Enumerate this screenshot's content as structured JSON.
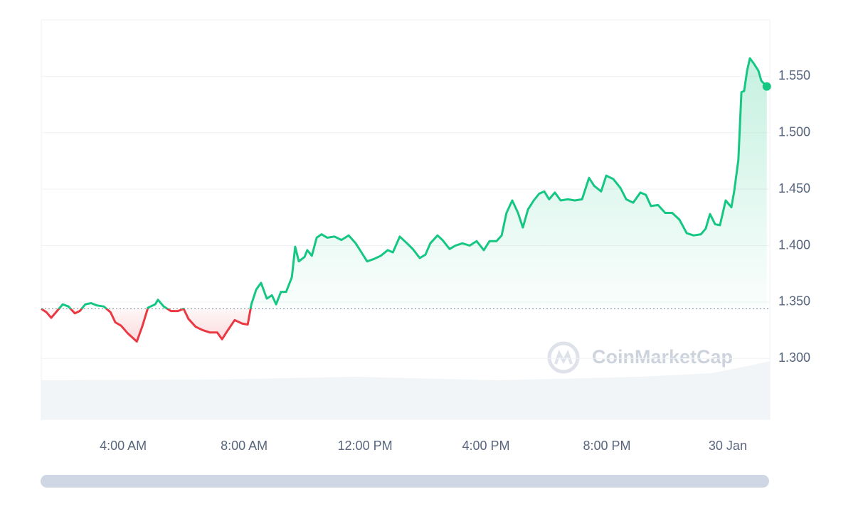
{
  "chart_data": {
    "type": "line",
    "color": "#16c784",
    "below_color": "#ea3943",
    "baseline": 1.344,
    "watermark": "CoinMarketCap",
    "grid": true,
    "xlim": [
      1.29,
      25.39
    ],
    "xticks": [
      {
        "value": 4,
        "label": "4:00 AM"
      },
      {
        "value": 8,
        "label": "8:00 AM"
      },
      {
        "value": 12,
        "label": "12:00 PM"
      },
      {
        "value": 16,
        "label": "4:00 PM"
      },
      {
        "value": 20,
        "label": "8:00 PM"
      },
      {
        "value": 24,
        "label": "30 Jan"
      }
    ],
    "ylim": [
      1.246,
      1.6
    ],
    "yticks": [
      {
        "value": 1.3,
        "label": "1.300"
      },
      {
        "value": 1.35,
        "label": "1.350"
      },
      {
        "value": 1.4,
        "label": "1.400"
      },
      {
        "value": 1.45,
        "label": "1.450"
      },
      {
        "value": 1.5,
        "label": "1.500"
      },
      {
        "value": 1.55,
        "label": "1.550"
      }
    ],
    "x": [
      1.29,
      1.46,
      1.62,
      1.81,
      2.0,
      2.19,
      2.4,
      2.56,
      2.75,
      2.94,
      3.13,
      3.36,
      3.58,
      3.74,
      3.93,
      4.16,
      4.45,
      4.64,
      4.82,
      5.06,
      5.15,
      5.34,
      5.58,
      5.81,
      6.0,
      6.16,
      6.4,
      6.64,
      6.87,
      7.11,
      7.27,
      7.46,
      7.69,
      7.93,
      8.12,
      8.24,
      8.4,
      8.56,
      8.75,
      8.92,
      9.06,
      9.22,
      9.39,
      9.58,
      9.69,
      9.81,
      10.0,
      10.09,
      10.24,
      10.4,
      10.56,
      10.75,
      10.99,
      11.22,
      11.46,
      11.69,
      11.88,
      12.07,
      12.28,
      12.52,
      12.75,
      12.92,
      13.15,
      13.39,
      13.58,
      13.81,
      14.0,
      14.16,
      14.4,
      14.56,
      14.8,
      14.99,
      15.22,
      15.46,
      15.69,
      15.93,
      16.12,
      16.35,
      16.52,
      16.68,
      16.87,
      17.06,
      17.22,
      17.39,
      17.58,
      17.76,
      17.93,
      18.09,
      18.28,
      18.47,
      18.71,
      18.94,
      19.18,
      19.41,
      19.58,
      19.81,
      19.98,
      20.21,
      20.45,
      20.64,
      20.87,
      21.11,
      21.29,
      21.46,
      21.69,
      21.93,
      22.16,
      22.4,
      22.64,
      22.87,
      23.11,
      23.27,
      23.41,
      23.58,
      23.74,
      23.93,
      24.12,
      24.21,
      24.35,
      24.45,
      24.54,
      24.64,
      24.73,
      24.87,
      25.01,
      25.11,
      25.29
    ],
    "values": [
      1.344,
      1.341,
      1.336,
      1.342,
      1.348,
      1.346,
      1.34,
      1.342,
      1.348,
      1.349,
      1.347,
      1.346,
      1.341,
      1.332,
      1.329,
      1.322,
      1.315,
      1.329,
      1.345,
      1.348,
      1.352,
      1.346,
      1.342,
      1.342,
      1.344,
      1.335,
      1.328,
      1.325,
      1.323,
      1.323,
      1.317,
      1.325,
      1.334,
      1.331,
      1.33,
      1.348,
      1.361,
      1.367,
      1.353,
      1.356,
      1.348,
      1.359,
      1.359,
      1.372,
      1.399,
      1.386,
      1.39,
      1.396,
      1.391,
      1.407,
      1.41,
      1.407,
      1.408,
      1.405,
      1.409,
      1.402,
      1.394,
      1.386,
      1.388,
      1.391,
      1.396,
      1.394,
      1.408,
      1.402,
      1.397,
      1.389,
      1.392,
      1.402,
      1.409,
      1.405,
      1.397,
      1.4,
      1.402,
      1.4,
      1.404,
      1.396,
      1.404,
      1.404,
      1.409,
      1.429,
      1.44,
      1.429,
      1.416,
      1.432,
      1.44,
      1.446,
      1.448,
      1.441,
      1.447,
      1.44,
      1.441,
      1.44,
      1.441,
      1.46,
      1.453,
      1.448,
      1.462,
      1.459,
      1.451,
      1.441,
      1.438,
      1.447,
      1.445,
      1.435,
      1.436,
      1.429,
      1.429,
      1.423,
      1.411,
      1.409,
      1.41,
      1.415,
      1.428,
      1.419,
      1.418,
      1.44,
      1.434,
      1.448,
      1.476,
      1.536,
      1.537,
      1.555,
      1.566,
      1.561,
      1.555,
      1.546,
      1.541
    ]
  }
}
